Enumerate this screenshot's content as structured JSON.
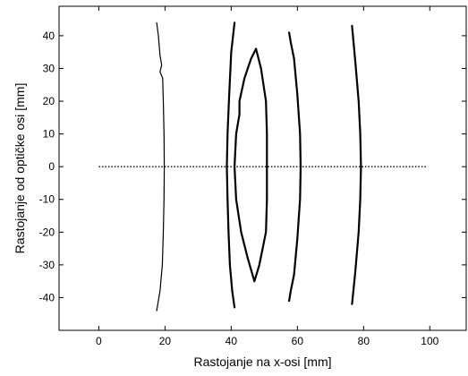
{
  "chart_data": {
    "type": "line",
    "title": "",
    "xlabel": "Rastojanje na x-osi [mm]",
    "ylabel": "Rastojanje od optičke osi [mm]",
    "xlim": [
      -12,
      111
    ],
    "ylim": [
      -50,
      49
    ],
    "xticks": [
      0,
      20,
      40,
      60,
      80,
      100
    ],
    "yticks": [
      -40,
      -30,
      -20,
      -10,
      0,
      10,
      20,
      30,
      40
    ],
    "grid": false,
    "legend": "none",
    "series": [
      {
        "style": "thin",
        "points": [
          [
            17.5,
            44
          ],
          [
            18,
            40
          ],
          [
            18.5,
            34
          ],
          [
            19,
            31
          ],
          [
            18.5,
            29
          ],
          [
            19.3,
            27
          ],
          [
            19.5,
            20
          ],
          [
            19.7,
            10
          ],
          [
            19.8,
            0
          ],
          [
            19.7,
            -10
          ],
          [
            19.5,
            -20
          ],
          [
            19.2,
            -30
          ],
          [
            18.5,
            -38
          ],
          [
            17.5,
            -44
          ]
        ]
      },
      {
        "style": "thick",
        "points": [
          [
            41,
            44
          ],
          [
            40,
            35
          ],
          [
            39.3,
            20
          ],
          [
            38.9,
            10
          ],
          [
            38.7,
            0
          ],
          [
            38.9,
            -10
          ],
          [
            39.2,
            -20
          ],
          [
            39.6,
            -30
          ],
          [
            40.3,
            -38
          ],
          [
            41,
            -43
          ]
        ]
      },
      {
        "style": "thick",
        "points": [
          [
            47.5,
            36
          ],
          [
            46,
            33
          ],
          [
            44,
            27
          ],
          [
            42.5,
            20
          ],
          [
            42.5,
            16
          ],
          [
            41.5,
            10
          ],
          [
            41,
            0
          ],
          [
            41.5,
            -10
          ],
          [
            43,
            -20
          ],
          [
            45,
            -28
          ],
          [
            47,
            -35
          ],
          [
            48.5,
            -30
          ],
          [
            50.5,
            -20
          ],
          [
            50.8,
            -10
          ],
          [
            50.8,
            0
          ],
          [
            50.8,
            10
          ],
          [
            50.5,
            20
          ],
          [
            49,
            30
          ],
          [
            47.5,
            36
          ]
        ]
      },
      {
        "style": "thick",
        "points": [
          [
            57.5,
            41
          ],
          [
            58,
            38
          ],
          [
            59,
            33
          ],
          [
            60,
            22
          ],
          [
            60.8,
            10
          ],
          [
            61,
            0
          ],
          [
            60.8,
            -10
          ],
          [
            60,
            -22
          ],
          [
            59,
            -33
          ],
          [
            58,
            -38
          ],
          [
            57.5,
            -41
          ]
        ]
      },
      {
        "style": "thick",
        "points": [
          [
            76.5,
            43
          ],
          [
            77.5,
            32
          ],
          [
            78.5,
            20
          ],
          [
            79,
            10
          ],
          [
            79.2,
            0
          ],
          [
            79,
            -10
          ],
          [
            78.5,
            -20
          ],
          [
            77.5,
            -32
          ],
          [
            76.5,
            -42
          ]
        ]
      }
    ],
    "optical_axis": {
      "style": "dotted",
      "x": [
        0,
        99
      ],
      "y": 0
    }
  }
}
